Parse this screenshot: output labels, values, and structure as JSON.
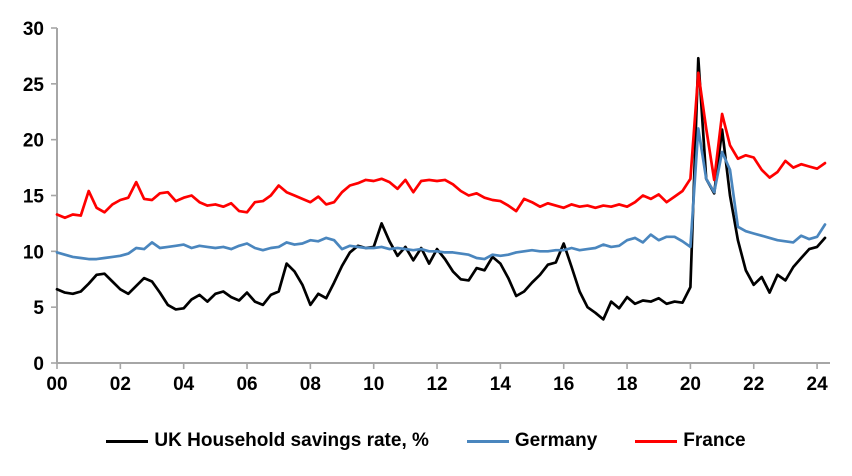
{
  "chart_data": {
    "type": "line",
    "title": "",
    "xlabel": "",
    "ylabel": "",
    "x_unit": "year (quarterly points)",
    "x_start_year": 2000,
    "points_per_year": 4,
    "xlim_years": [
      2000,
      2024.5
    ],
    "ylim": [
      0,
      30
    ],
    "y_ticks": [
      0,
      5,
      10,
      15,
      20,
      25,
      30
    ],
    "x_tick_labels": [
      "00",
      "02",
      "04",
      "06",
      "08",
      "10",
      "12",
      "14",
      "16",
      "18",
      "20",
      "22",
      "24"
    ],
    "grid": "off",
    "legend_position": "bottom",
    "axis_color": "#a6a6a6",
    "tick_label_color": "#000000",
    "series": [
      {
        "name": "UK Household savings rate, %",
        "id": "uk",
        "color": "#000000",
        "values": [
          6.6,
          6.3,
          6.2,
          6.4,
          7.1,
          7.9,
          8.0,
          7.3,
          6.6,
          6.2,
          6.9,
          7.6,
          7.3,
          6.3,
          5.2,
          4.8,
          4.9,
          5.7,
          6.1,
          5.5,
          6.2,
          6.4,
          5.9,
          5.6,
          6.3,
          5.5,
          5.2,
          6.1,
          6.4,
          8.9,
          8.2,
          7.0,
          5.2,
          6.2,
          5.8,
          7.2,
          8.7,
          9.9,
          10.5,
          10.3,
          10.4,
          12.5,
          10.9,
          9.6,
          10.4,
          9.2,
          10.3,
          8.9,
          10.2,
          9.3,
          8.2,
          7.5,
          7.4,
          8.5,
          8.3,
          9.5,
          8.9,
          7.6,
          6.0,
          6.4,
          7.2,
          7.9,
          8.8,
          9.0,
          10.7,
          8.6,
          6.4,
          5.0,
          4.5,
          3.9,
          5.5,
          4.9,
          5.9,
          5.3,
          5.6,
          5.5,
          5.8,
          5.3,
          5.5,
          5.4,
          6.8,
          27.3,
          16.5,
          15.2,
          20.9,
          15.0,
          11.0,
          8.3,
          7.0,
          7.7,
          6.3,
          7.9,
          7.4,
          8.6,
          9.4,
          10.2,
          10.4,
          11.2
        ]
      },
      {
        "name": "Germany",
        "id": "germany",
        "color": "#4a86be",
        "values": [
          9.9,
          9.7,
          9.5,
          9.4,
          9.3,
          9.3,
          9.4,
          9.5,
          9.6,
          9.8,
          10.3,
          10.2,
          10.8,
          10.3,
          10.4,
          10.5,
          10.6,
          10.3,
          10.5,
          10.4,
          10.3,
          10.4,
          10.2,
          10.5,
          10.7,
          10.3,
          10.1,
          10.3,
          10.4,
          10.8,
          10.6,
          10.7,
          11.0,
          10.9,
          11.2,
          11.0,
          10.2,
          10.5,
          10.4,
          10.3,
          10.3,
          10.4,
          10.2,
          10.3,
          10.2,
          10.1,
          10.2,
          10.0,
          10.0,
          9.9,
          9.9,
          9.8,
          9.7,
          9.4,
          9.3,
          9.7,
          9.6,
          9.7,
          9.9,
          10.0,
          10.1,
          10.0,
          10.0,
          10.1,
          10.1,
          10.3,
          10.1,
          10.2,
          10.3,
          10.6,
          10.4,
          10.5,
          11.0,
          11.2,
          10.8,
          11.5,
          11.0,
          11.3,
          11.3,
          10.9,
          10.4,
          21.0,
          16.5,
          15.3,
          18.9,
          17.3,
          12.2,
          11.8,
          11.6,
          11.4,
          11.2,
          11.0,
          10.9,
          10.8,
          11.4,
          11.1,
          11.3,
          12.4
        ]
      },
      {
        "name": "France",
        "id": "france",
        "color": "#ff0000",
        "values": [
          13.3,
          13.0,
          13.3,
          13.2,
          15.4,
          13.9,
          13.5,
          14.2,
          14.6,
          14.8,
          16.2,
          14.7,
          14.6,
          15.2,
          15.3,
          14.5,
          14.8,
          15.0,
          14.4,
          14.1,
          14.2,
          14.0,
          14.3,
          13.6,
          13.5,
          14.4,
          14.5,
          15.0,
          15.9,
          15.3,
          15.0,
          14.7,
          14.4,
          14.9,
          14.2,
          14.4,
          15.3,
          15.9,
          16.1,
          16.4,
          16.3,
          16.5,
          16.2,
          15.6,
          16.4,
          15.3,
          16.3,
          16.4,
          16.3,
          16.4,
          16.0,
          15.4,
          15.0,
          15.2,
          14.8,
          14.6,
          14.5,
          14.1,
          13.6,
          14.7,
          14.4,
          14.0,
          14.3,
          14.1,
          13.9,
          14.2,
          14.0,
          14.1,
          13.9,
          14.1,
          14.0,
          14.2,
          14.0,
          14.4,
          15.0,
          14.7,
          15.1,
          14.4,
          14.9,
          15.4,
          16.5,
          26.0,
          21.0,
          16.4,
          22.3,
          19.5,
          18.3,
          18.6,
          18.4,
          17.3,
          16.6,
          17.1,
          18.1,
          17.5,
          17.8,
          17.6,
          17.4,
          17.9
        ]
      }
    ]
  }
}
